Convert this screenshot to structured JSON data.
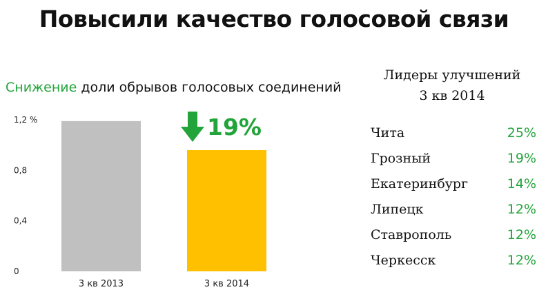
{
  "title": "Повысили качество голосовой связи",
  "subtitle": {
    "highlight": "Снижение",
    "rest": "доли обрывов голосовых соединений"
  },
  "colors": {
    "accent_green": "#22a43a",
    "bar_2013": "#c0c0c0",
    "bar_2014": "#ffc000"
  },
  "delta": {
    "icon": "down-arrow-icon",
    "label": "19%"
  },
  "chart_data": {
    "type": "bar",
    "categories": [
      "3 кв 2013",
      "3 кв 2014"
    ],
    "values": [
      1.19,
      0.96
    ],
    "bar_colors": [
      "#c0c0c0",
      "#ffc000"
    ],
    "yticks": [
      0,
      0.4,
      0.8,
      1.2
    ],
    "ytick_labels": [
      "0",
      "0,4",
      "0,8",
      "1,2 %"
    ],
    "ylim": [
      0,
      1.2
    ],
    "grid": false
  },
  "leaders": {
    "title_line1": "Лидеры улучшений",
    "title_line2": "3 кв 2014",
    "items": [
      {
        "city": "Чита",
        "value": "25%"
      },
      {
        "city": "Грозный",
        "value": "19%"
      },
      {
        "city": "Екатеринбург",
        "value": "14%"
      },
      {
        "city": "Липецк",
        "value": "12%"
      },
      {
        "city": "Ставрополь",
        "value": "12%"
      },
      {
        "city": "Черкесск",
        "value": "12%"
      }
    ]
  }
}
